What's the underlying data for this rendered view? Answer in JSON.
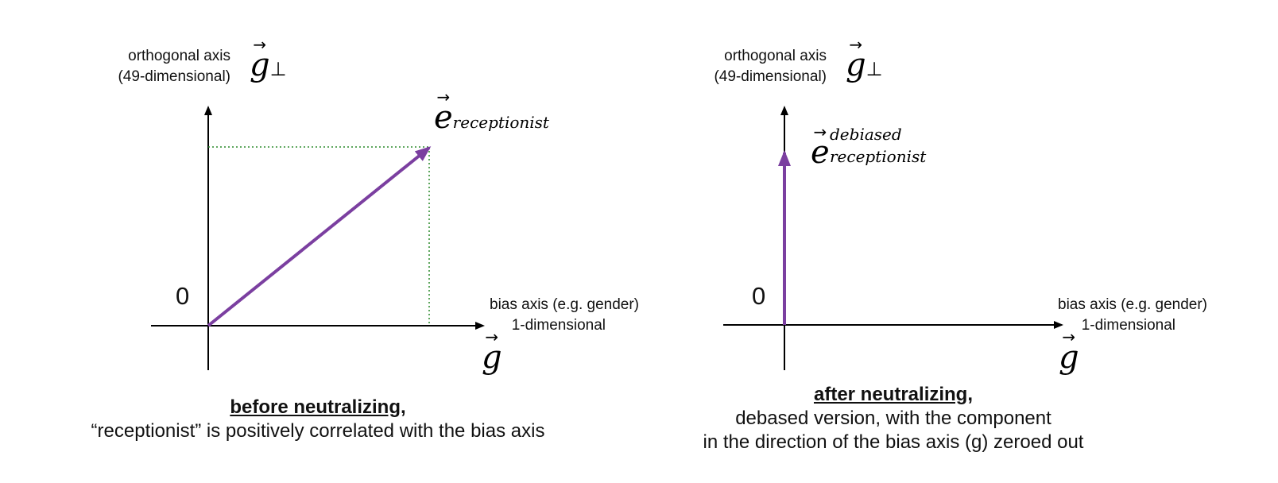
{
  "left": {
    "y_axis_label_line1": "orthogonal axis",
    "y_axis_label_line2": "(49-dimensional)",
    "y_axis_symbol": "g",
    "y_axis_symbol_subscript": "⊥",
    "vector_symbol": "e",
    "vector_subscript": "receptionist",
    "origin_label": "0",
    "x_axis_label_line1": "bias axis (e.g. gender)",
    "x_axis_label_line2": "1-dimensional",
    "x_axis_symbol": "g",
    "caption_heading": "before neutralizing,",
    "caption_line1": "“receptionist” is positively correlated with the bias axis"
  },
  "right": {
    "y_axis_label_line1": "orthogonal axis",
    "y_axis_label_line2": "(49-dimensional)",
    "y_axis_symbol": "g",
    "y_axis_symbol_subscript": "⊥",
    "vector_symbol": "e",
    "vector_superscript": "debiased",
    "vector_subscript": "receptionist",
    "origin_label": "0",
    "x_axis_label_line1": "bias axis (e.g. gender)",
    "x_axis_label_line2": "1-dimensional",
    "x_axis_symbol": "g",
    "caption_heading": "after neutralizing,",
    "caption_line1": "debased version, with the component",
    "caption_line2": "in the direction of the bias axis (g) zeroed out"
  },
  "colors": {
    "vector": "#7b3fa0",
    "projection": "#2a8a2a",
    "axis": "#000000"
  }
}
